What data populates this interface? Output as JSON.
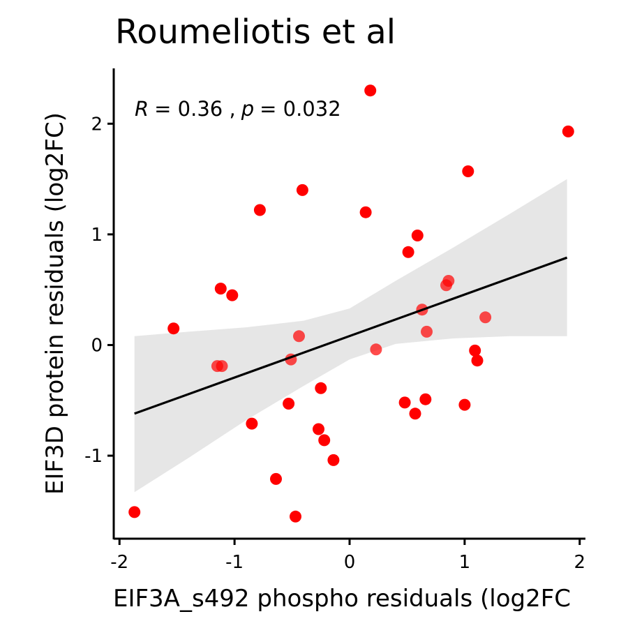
{
  "chart_data": {
    "type": "scatter",
    "title": "Roumeliotis et al",
    "xlabel": "EIF3A_s492 phospho residuals (log2FC",
    "ylabel": "EIF3D protein residuals (log2FC)",
    "xlim": [
      -2.05,
      2.05
    ],
    "ylim": [
      -1.75,
      2.5
    ],
    "x_ticks": [
      -2,
      -1,
      0,
      1,
      2
    ],
    "x_tick_labels": [
      "-2",
      "-1",
      "0",
      "1",
      "2"
    ],
    "y_ticks": [
      -1,
      0,
      1,
      2
    ],
    "y_tick_labels": [
      "-1",
      "0",
      "1",
      "2"
    ],
    "grid": false,
    "point_color": "#ff0000",
    "ribbon_color": "#e6e6e6",
    "line_color": "#000000",
    "annotation": {
      "r_symbol": "R",
      "r_value": "= 0.36 ,",
      "p_symbol": "p",
      "p_value": "= 0.032"
    },
    "regression": {
      "x_start": -1.87,
      "y_start": -0.62,
      "x_end": 1.89,
      "y_end": 0.79
    },
    "confidence_band": {
      "x": [
        -1.87,
        -1.4,
        -0.9,
        -0.4,
        0.0,
        0.4,
        0.9,
        1.4,
        1.89
      ],
      "upper": [
        0.08,
        0.12,
        0.16,
        0.22,
        0.33,
        0.58,
        0.88,
        1.19,
        1.5
      ],
      "lower": [
        -1.33,
        -1.02,
        -0.68,
        -0.37,
        -0.13,
        0.01,
        0.06,
        0.08,
        0.08
      ]
    },
    "points": [
      {
        "x": -1.87,
        "y": -1.51
      },
      {
        "x": -1.53,
        "y": 0.15
      },
      {
        "x": -1.15,
        "y": -0.19
      },
      {
        "x": -1.11,
        "y": -0.19
      },
      {
        "x": -1.12,
        "y": 0.51
      },
      {
        "x": -1.02,
        "y": 0.45
      },
      {
        "x": -0.85,
        "y": -0.71
      },
      {
        "x": -0.78,
        "y": 1.22
      },
      {
        "x": -0.64,
        "y": -1.21
      },
      {
        "x": -0.53,
        "y": -0.53
      },
      {
        "x": -0.51,
        "y": -0.13
      },
      {
        "x": -0.47,
        "y": -1.55
      },
      {
        "x": -0.44,
        "y": 0.08
      },
      {
        "x": -0.41,
        "y": 1.4
      },
      {
        "x": -0.27,
        "y": -0.76
      },
      {
        "x": -0.25,
        "y": -0.39
      },
      {
        "x": -0.22,
        "y": -0.86
      },
      {
        "x": -0.14,
        "y": -1.04
      },
      {
        "x": 0.14,
        "y": 1.2
      },
      {
        "x": 0.18,
        "y": 2.3
      },
      {
        "x": 0.23,
        "y": -0.04
      },
      {
        "x": 0.48,
        "y": -0.52
      },
      {
        "x": 0.51,
        "y": 0.84
      },
      {
        "x": 0.57,
        "y": -0.62
      },
      {
        "x": 0.59,
        "y": 0.99
      },
      {
        "x": 0.63,
        "y": 0.32
      },
      {
        "x": 0.66,
        "y": -0.49
      },
      {
        "x": 0.67,
        "y": 0.12
      },
      {
        "x": 0.84,
        "y": 0.54
      },
      {
        "x": 0.86,
        "y": 0.58
      },
      {
        "x": 1.0,
        "y": -0.54
      },
      {
        "x": 1.03,
        "y": 1.57
      },
      {
        "x": 1.09,
        "y": -0.05
      },
      {
        "x": 1.11,
        "y": -0.14
      },
      {
        "x": 1.18,
        "y": 0.25
      },
      {
        "x": 1.9,
        "y": 1.93
      }
    ]
  }
}
